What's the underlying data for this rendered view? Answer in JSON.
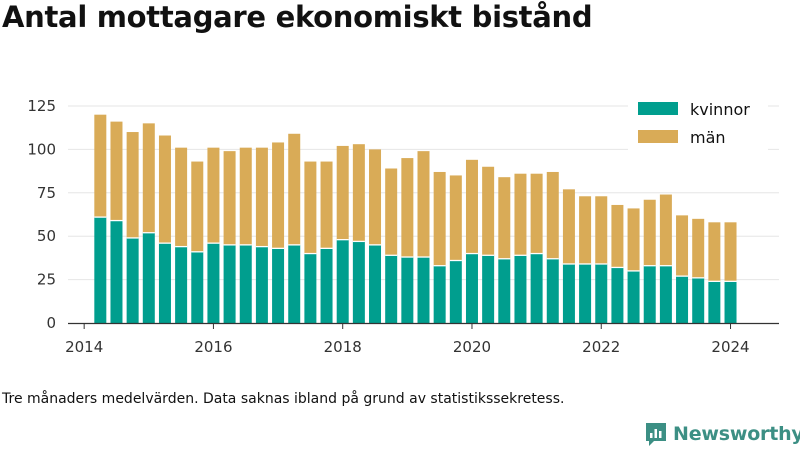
{
  "title": "Antal mottagare ekonomiskt bistånd",
  "note": "Tre månaders medelvärden. Data saknas ibland på grund av statistikssekretess.",
  "brand": "Newsworthy",
  "colors": {
    "kvinnor": "#009e8e",
    "man": "#d9ab57",
    "axis": "#333333",
    "grid": "#e6e6e6",
    "brand": "#3c8f84"
  },
  "chart_data": {
    "type": "bar",
    "stacked": true,
    "x_axis": {
      "ticks": [
        "2014",
        "2016",
        "2018",
        "2020",
        "2022",
        "2024"
      ],
      "range": [
        "2013-10",
        "2024-10"
      ]
    },
    "y_axis": {
      "ticks": [
        "0",
        "25",
        "50",
        "75",
        "100",
        "125"
      ],
      "ylim": [
        0,
        125
      ]
    },
    "grid": "horizontal",
    "legend_position": "top-right",
    "x": [
      "2014-04",
      "2014-07",
      "2014-10",
      "2015-01",
      "2015-04",
      "2015-07",
      "2015-10",
      "2016-01",
      "2016-04",
      "2016-07",
      "2016-10",
      "2017-01",
      "2017-04",
      "2017-07",
      "2017-10",
      "2018-01",
      "2018-04",
      "2018-07",
      "2018-10",
      "2019-01",
      "2019-04",
      "2019-07",
      "2019-10",
      "2020-01",
      "2020-04",
      "2020-07",
      "2020-10",
      "2021-01",
      "2021-04",
      "2021-07",
      "2021-10",
      "2022-01",
      "2022-04",
      "2022-07",
      "2022-10",
      "2023-01",
      "2023-04",
      "2023-07",
      "2023-10",
      "2024-01"
    ],
    "series": [
      {
        "name": "kvinnor",
        "values": [
          61,
          59,
          49,
          52,
          46,
          44,
          41,
          46,
          45,
          45,
          44,
          43,
          45,
          40,
          43,
          48,
          47,
          45,
          39,
          38,
          38,
          33,
          36,
          40,
          39,
          37,
          39,
          40,
          37,
          34,
          34,
          34,
          32,
          30,
          33,
          33,
          27,
          26,
          24,
          24
        ]
      },
      {
        "name": "män",
        "values": [
          59,
          57,
          61,
          63,
          62,
          57,
          52,
          55,
          54,
          56,
          57,
          61,
          64,
          53,
          50,
          54,
          56,
          55,
          50,
          57,
          61,
          54,
          49,
          54,
          51,
          47,
          47,
          46,
          50,
          43,
          39,
          39,
          36,
          36,
          38,
          41,
          35,
          34,
          34,
          34
        ]
      }
    ]
  }
}
